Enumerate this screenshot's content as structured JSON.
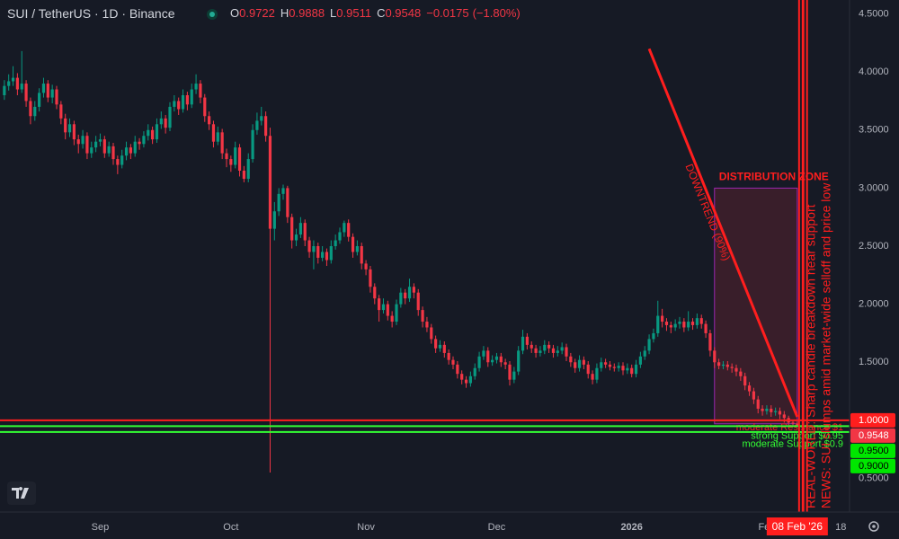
{
  "chart_data": {
    "type": "candlestick",
    "title": "SUI / TetherUS · 1D · Binance",
    "ohlc_labels": [
      "O",
      "H",
      "L",
      "C"
    ],
    "change": {
      "value": -0.0175,
      "label": "−0.0175"
    },
    "change_pct": {
      "value": -1.8,
      "label": "(−1.80%)"
    },
    "up_color": "#089981",
    "down_color": "#f23645",
    "xlim": [
      -23,
      172
    ],
    "ylim": [
      0.21,
      4.62
    ],
    "xticks": [
      {
        "value": 0,
        "label": "Sep"
      },
      {
        "value": 30,
        "label": "Oct"
      },
      {
        "value": 61,
        "label": "Nov"
      },
      {
        "value": 91,
        "label": "Dec"
      },
      {
        "value": 122,
        "label": "2026"
      },
      {
        "value": 153,
        "label": "Feb"
      },
      {
        "value": 170,
        "label": "18"
      }
    ],
    "yticks": [
      {
        "value": 4.5,
        "label": "4.5000"
      },
      {
        "value": 4,
        "label": "4.0000"
      },
      {
        "value": 3.5,
        "label": "3.5000"
      },
      {
        "value": 3,
        "label": "3.0000"
      },
      {
        "value": 2.5,
        "label": "2.5000"
      },
      {
        "value": 2,
        "label": "2.0000"
      },
      {
        "value": 1.5,
        "label": "1.5000"
      },
      {
        "value": 0.5,
        "label": "0.5000"
      }
    ],
    "grid": false,
    "price_labels": [
      {
        "value": 1,
        "label": "1.0000",
        "color": "#ff1e1e"
      },
      {
        "value": 0.9548,
        "label": "0.9548",
        "color": "#f23645"
      },
      {
        "value": 0.95,
        "label": "0.9500",
        "color": "#00e600"
      },
      {
        "value": 0.9,
        "label": "0.9000",
        "color": "#00e600"
      }
    ],
    "levels": [
      {
        "value": 1,
        "color": "#ff1e1e",
        "label": "moderate Resistance $1"
      },
      {
        "value": 0.95,
        "color": "#33ff33",
        "label": "strong Support $0.95"
      },
      {
        "value": 0.9,
        "color": "#33ff33",
        "label": "moderate Support $0.9"
      }
    ],
    "zone": {
      "label": "DISTRIBUTION ZONE",
      "x": [
        141,
        160
      ],
      "y": [
        0.97,
        3.0
      ]
    },
    "trendline": {
      "label": "DOWNTREND (90%)",
      "x": [
        126,
        160
      ],
      "y": [
        4.2,
        1.03
      ]
    },
    "events": [
      {
        "x": 160,
        "label": "REAL-WORLD: Sharp candle breakdown near support"
      },
      {
        "x": 161,
        "label": "NEWS: SUI slumps amid market-wide selloff and price low"
      }
    ],
    "date_label": "08 Feb '26",
    "x": [
      -22,
      -21,
      -20,
      -19,
      -18,
      -17,
      -16,
      -15,
      -14,
      -13,
      -12,
      -11,
      -10,
      -9,
      -8,
      -7,
      -6,
      -5,
      -4,
      -3,
      -2,
      -1,
      0,
      1,
      2,
      3,
      4,
      5,
      6,
      7,
      8,
      9,
      10,
      11,
      12,
      13,
      14,
      15,
      16,
      17,
      18,
      19,
      20,
      21,
      22,
      23,
      24,
      25,
      26,
      27,
      28,
      29,
      30,
      31,
      32,
      33,
      34,
      35,
      36,
      37,
      38,
      39,
      40,
      41,
      42,
      43,
      44,
      45,
      46,
      47,
      48,
      49,
      50,
      51,
      52,
      53,
      54,
      55,
      56,
      57,
      58,
      59,
      60,
      61,
      62,
      63,
      64,
      65,
      66,
      67,
      68,
      69,
      70,
      71,
      72,
      73,
      74,
      75,
      76,
      77,
      78,
      79,
      80,
      81,
      82,
      83,
      84,
      85,
      86,
      87,
      88,
      89,
      90,
      91,
      92,
      93,
      94,
      95,
      96,
      97,
      98,
      99,
      100,
      101,
      102,
      103,
      104,
      105,
      106,
      107,
      108,
      109,
      110,
      111,
      112,
      113,
      114,
      115,
      116,
      117,
      118,
      119,
      120,
      121,
      122,
      123,
      124,
      125,
      126,
      127,
      128,
      129,
      130,
      131,
      132,
      133,
      134,
      135,
      136,
      137,
      138,
      139,
      140,
      141,
      142,
      143,
      144,
      145,
      146,
      147,
      148,
      149,
      150,
      151,
      152,
      153,
      154,
      155,
      156,
      157,
      158,
      159,
      160
    ],
    "ohlc": [
      [
        3.8,
        3.93,
        3.76,
        3.88
      ],
      [
        3.88,
        3.98,
        3.84,
        3.92
      ],
      [
        3.92,
        4.05,
        3.88,
        3.95
      ],
      [
        3.95,
        3.99,
        3.8,
        3.85
      ],
      [
        3.85,
        4.18,
        3.82,
        3.9
      ],
      [
        3.9,
        3.93,
        3.7,
        3.75
      ],
      [
        3.75,
        3.78,
        3.55,
        3.62
      ],
      [
        3.62,
        3.75,
        3.58,
        3.7
      ],
      [
        3.7,
        3.86,
        3.66,
        3.82
      ],
      [
        3.82,
        3.95,
        3.78,
        3.9
      ],
      [
        3.9,
        3.93,
        3.74,
        3.78
      ],
      [
        3.78,
        3.89,
        3.73,
        3.85
      ],
      [
        3.85,
        3.88,
        3.68,
        3.72
      ],
      [
        3.72,
        3.75,
        3.55,
        3.6
      ],
      [
        3.6,
        3.64,
        3.42,
        3.48
      ],
      [
        3.48,
        3.6,
        3.44,
        3.55
      ],
      [
        3.55,
        3.58,
        3.37,
        3.42
      ],
      [
        3.42,
        3.46,
        3.3,
        3.38
      ],
      [
        3.38,
        3.5,
        3.34,
        3.45
      ],
      [
        3.45,
        3.48,
        3.25,
        3.3
      ],
      [
        3.3,
        3.4,
        3.26,
        3.35
      ],
      [
        3.35,
        3.45,
        3.31,
        3.4
      ],
      [
        3.4,
        3.47,
        3.36,
        3.42
      ],
      [
        3.42,
        3.45,
        3.26,
        3.3
      ],
      [
        3.3,
        3.4,
        3.27,
        3.36
      ],
      [
        3.36,
        3.39,
        3.2,
        3.25
      ],
      [
        3.25,
        3.28,
        3.12,
        3.2
      ],
      [
        3.2,
        3.33,
        3.17,
        3.28
      ],
      [
        3.28,
        3.4,
        3.24,
        3.35
      ],
      [
        3.35,
        3.38,
        3.25,
        3.3
      ],
      [
        3.3,
        3.45,
        3.27,
        3.4
      ],
      [
        3.4,
        3.43,
        3.33,
        3.38
      ],
      [
        3.38,
        3.49,
        3.35,
        3.45
      ],
      [
        3.45,
        3.55,
        3.41,
        3.5
      ],
      [
        3.5,
        3.53,
        3.38,
        3.42
      ],
      [
        3.42,
        3.6,
        3.39,
        3.55
      ],
      [
        3.55,
        3.66,
        3.51,
        3.6
      ],
      [
        3.6,
        3.63,
        3.47,
        3.52
      ],
      [
        3.52,
        3.74,
        3.49,
        3.7
      ],
      [
        3.7,
        3.8,
        3.66,
        3.75
      ],
      [
        3.75,
        3.78,
        3.63,
        3.68
      ],
      [
        3.68,
        3.85,
        3.65,
        3.8
      ],
      [
        3.8,
        3.83,
        3.67,
        3.72
      ],
      [
        3.72,
        3.9,
        3.69,
        3.85
      ],
      [
        3.85,
        3.98,
        3.81,
        3.9
      ],
      [
        3.9,
        3.93,
        3.73,
        3.78
      ],
      [
        3.78,
        3.81,
        3.57,
        3.62
      ],
      [
        3.62,
        3.66,
        3.5,
        3.55
      ],
      [
        3.55,
        3.58,
        3.35,
        3.4
      ],
      [
        3.4,
        3.53,
        3.37,
        3.48
      ],
      [
        3.48,
        3.51,
        3.25,
        3.3
      ],
      [
        3.3,
        3.34,
        3.18,
        3.25
      ],
      [
        3.25,
        3.28,
        3.14,
        3.2
      ],
      [
        3.2,
        3.4,
        3.17,
        3.35
      ],
      [
        3.35,
        3.38,
        3.1,
        3.15
      ],
      [
        3.15,
        3.19,
        3.05,
        3.08
      ],
      [
        3.08,
        3.3,
        3.05,
        3.25
      ],
      [
        3.25,
        3.55,
        3.22,
        3.5
      ],
      [
        3.5,
        3.65,
        3.46,
        3.58
      ],
      [
        3.58,
        3.7,
        3.54,
        3.62
      ],
      [
        3.62,
        3.66,
        3.4,
        3.45
      ],
      [
        3.45,
        3.52,
        0.55,
        2.65
      ],
      [
        2.65,
        2.88,
        2.55,
        2.8
      ],
      [
        2.8,
        3.0,
        2.76,
        2.95
      ],
      [
        2.95,
        3.03,
        2.9,
        3.0
      ],
      [
        3.0,
        3.02,
        2.7,
        2.75
      ],
      [
        2.75,
        2.78,
        2.48,
        2.55
      ],
      [
        2.55,
        2.65,
        2.5,
        2.6
      ],
      [
        2.6,
        2.75,
        2.57,
        2.7
      ],
      [
        2.7,
        2.73,
        2.5,
        2.55
      ],
      [
        2.55,
        2.58,
        2.4,
        2.45
      ],
      [
        2.45,
        2.55,
        2.3,
        2.5
      ],
      [
        2.5,
        2.53,
        2.35,
        2.4
      ],
      [
        2.4,
        2.5,
        2.37,
        2.45
      ],
      [
        2.45,
        2.48,
        2.33,
        2.38
      ],
      [
        2.38,
        2.55,
        2.35,
        2.5
      ],
      [
        2.5,
        2.6,
        2.47,
        2.55
      ],
      [
        2.55,
        2.66,
        2.52,
        2.62
      ],
      [
        2.62,
        2.72,
        2.58,
        2.7
      ],
      [
        2.7,
        2.73,
        2.54,
        2.58
      ],
      [
        2.58,
        2.61,
        2.4,
        2.45
      ],
      [
        2.45,
        2.55,
        2.42,
        2.5
      ],
      [
        2.5,
        2.53,
        2.3,
        2.35
      ],
      [
        2.35,
        2.38,
        2.25,
        2.3
      ],
      [
        2.3,
        2.33,
        2.1,
        2.15
      ],
      [
        2.15,
        2.18,
        2.0,
        2.05
      ],
      [
        2.05,
        2.08,
        1.85,
        1.95
      ],
      [
        1.95,
        2.05,
        1.92,
        2.0
      ],
      [
        2.0,
        2.03,
        1.86,
        1.9
      ],
      [
        1.9,
        1.94,
        1.8,
        1.85
      ],
      [
        1.85,
        2.04,
        1.82,
        2.0
      ],
      [
        2.0,
        2.14,
        1.97,
        2.1
      ],
      [
        2.1,
        2.13,
        2.0,
        2.05
      ],
      [
        2.05,
        2.22,
        2.02,
        2.15
      ],
      [
        2.15,
        2.18,
        2.05,
        2.1
      ],
      [
        2.1,
        2.13,
        1.9,
        1.95
      ],
      [
        1.95,
        1.98,
        1.8,
        1.85
      ],
      [
        1.85,
        1.89,
        1.76,
        1.8
      ],
      [
        1.8,
        1.83,
        1.66,
        1.7
      ],
      [
        1.7,
        1.73,
        1.58,
        1.62
      ],
      [
        1.62,
        1.69,
        1.59,
        1.65
      ],
      [
        1.65,
        1.68,
        1.54,
        1.58
      ],
      [
        1.58,
        1.61,
        1.48,
        1.52
      ],
      [
        1.52,
        1.55,
        1.44,
        1.48
      ],
      [
        1.48,
        1.51,
        1.36,
        1.4
      ],
      [
        1.4,
        1.43,
        1.31,
        1.35
      ],
      [
        1.35,
        1.38,
        1.28,
        1.32
      ],
      [
        1.32,
        1.42,
        1.29,
        1.38
      ],
      [
        1.38,
        1.49,
        1.35,
        1.45
      ],
      [
        1.45,
        1.59,
        1.42,
        1.55
      ],
      [
        1.55,
        1.64,
        1.52,
        1.6
      ],
      [
        1.6,
        1.63,
        1.46,
        1.5
      ],
      [
        1.5,
        1.56,
        1.47,
        1.52
      ],
      [
        1.52,
        1.58,
        1.49,
        1.55
      ],
      [
        1.55,
        1.58,
        1.46,
        1.5
      ],
      [
        1.5,
        1.53,
        1.44,
        1.48
      ],
      [
        1.48,
        1.51,
        1.3,
        1.35
      ],
      [
        1.35,
        1.46,
        1.32,
        1.42
      ],
      [
        1.42,
        1.64,
        1.39,
        1.6
      ],
      [
        1.6,
        1.78,
        1.57,
        1.72
      ],
      [
        1.72,
        1.75,
        1.61,
        1.65
      ],
      [
        1.65,
        1.68,
        1.58,
        1.62
      ],
      [
        1.62,
        1.65,
        1.54,
        1.58
      ],
      [
        1.58,
        1.64,
        1.55,
        1.6
      ],
      [
        1.6,
        1.69,
        1.57,
        1.65
      ],
      [
        1.65,
        1.68,
        1.58,
        1.62
      ],
      [
        1.62,
        1.65,
        1.54,
        1.58
      ],
      [
        1.58,
        1.64,
        1.55,
        1.6
      ],
      [
        1.6,
        1.67,
        1.57,
        1.63
      ],
      [
        1.63,
        1.66,
        1.51,
        1.55
      ],
      [
        1.55,
        1.58,
        1.46,
        1.5
      ],
      [
        1.5,
        1.53,
        1.41,
        1.45
      ],
      [
        1.45,
        1.56,
        1.42,
        1.52
      ],
      [
        1.52,
        1.55,
        1.44,
        1.48
      ],
      [
        1.48,
        1.51,
        1.36,
        1.4
      ],
      [
        1.4,
        1.43,
        1.31,
        1.35
      ],
      [
        1.35,
        1.49,
        1.32,
        1.45
      ],
      [
        1.45,
        1.54,
        1.42,
        1.5
      ],
      [
        1.5,
        1.53,
        1.45,
        1.48
      ],
      [
        1.48,
        1.51,
        1.43,
        1.46
      ],
      [
        1.46,
        1.49,
        1.42,
        1.45
      ],
      [
        1.45,
        1.5,
        1.42,
        1.47
      ],
      [
        1.47,
        1.5,
        1.39,
        1.43
      ],
      [
        1.43,
        1.49,
        1.4,
        1.45
      ],
      [
        1.45,
        1.48,
        1.37,
        1.4
      ],
      [
        1.4,
        1.52,
        1.37,
        1.48
      ],
      [
        1.48,
        1.59,
        1.45,
        1.55
      ],
      [
        1.55,
        1.64,
        1.52,
        1.6
      ],
      [
        1.6,
        1.74,
        1.57,
        1.7
      ],
      [
        1.7,
        1.79,
        1.67,
        1.75
      ],
      [
        1.75,
        2.03,
        1.72,
        1.9
      ],
      [
        1.9,
        1.96,
        1.8,
        1.85
      ],
      [
        1.85,
        1.88,
        1.77,
        1.82
      ],
      [
        1.82,
        1.85,
        1.75,
        1.8
      ],
      [
        1.8,
        1.87,
        1.77,
        1.83
      ],
      [
        1.83,
        1.89,
        1.79,
        1.85
      ],
      [
        1.85,
        1.88,
        1.76,
        1.8
      ],
      [
        1.8,
        1.94,
        1.77,
        1.85
      ],
      [
        1.85,
        1.88,
        1.78,
        1.82
      ],
      [
        1.82,
        1.92,
        1.79,
        1.88
      ],
      [
        1.88,
        1.91,
        1.79,
        1.83
      ],
      [
        1.83,
        1.86,
        1.71,
        1.75
      ],
      [
        1.75,
        1.78,
        1.55,
        1.6
      ],
      [
        1.6,
        1.63,
        1.45,
        1.5
      ],
      [
        1.5,
        1.53,
        1.44,
        1.47
      ],
      [
        1.47,
        1.51,
        1.44,
        1.48
      ],
      [
        1.48,
        1.51,
        1.43,
        1.46
      ],
      [
        1.46,
        1.49,
        1.41,
        1.45
      ],
      [
        1.45,
        1.48,
        1.38,
        1.42
      ],
      [
        1.42,
        1.45,
        1.34,
        1.38
      ],
      [
        1.38,
        1.41,
        1.26,
        1.3
      ],
      [
        1.3,
        1.33,
        1.21,
        1.25
      ],
      [
        1.25,
        1.28,
        1.14,
        1.18
      ],
      [
        1.18,
        1.21,
        1.06,
        1.1
      ],
      [
        1.1,
        1.13,
        1.04,
        1.08
      ],
      [
        1.08,
        1.13,
        1.05,
        1.1
      ],
      [
        1.1,
        1.13,
        1.03,
        1.07
      ],
      [
        1.07,
        1.11,
        1.04,
        1.08
      ],
      [
        1.08,
        1.11,
        1.01,
        1.05
      ],
      [
        1.05,
        1.08,
        0.98,
        1.02
      ],
      [
        1.02,
        1.04,
        0.94,
        0.98
      ],
      [
        0.98,
        1.0,
        0.95,
        0.9722
      ],
      [
        0.9722,
        0.9888,
        0.9511,
        0.9548
      ]
    ]
  }
}
